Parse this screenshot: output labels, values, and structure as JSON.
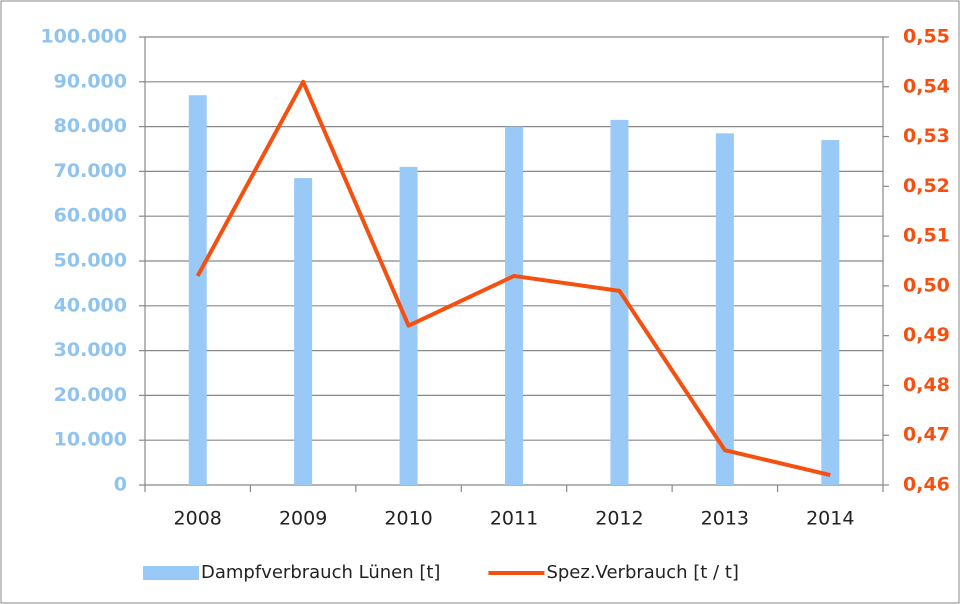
{
  "chart_data": {
    "type": "bar",
    "categories": [
      "2008",
      "2009",
      "2010",
      "2011",
      "2012",
      "2013",
      "2014"
    ],
    "series": [
      {
        "name": "Dampfverbrauch Lünen [t]",
        "type": "bar",
        "color": "#99c9f7",
        "values": [
          87000,
          68500,
          71000,
          80000,
          81500,
          78500,
          77000
        ]
      },
      {
        "name": "Spez.Verbrauch [t / t]",
        "type": "line",
        "axis": "y2",
        "color": "#f5500f",
        "values": [
          0.502,
          0.541,
          0.492,
          0.502,
          0.499,
          0.467,
          0.462
        ]
      }
    ],
    "ylim": [
      0,
      100000
    ],
    "yticks": [
      0,
      {
        "value": 10000,
        "label": "10.000"
      },
      {
        "value": 20000,
        "label": "20.000"
      },
      {
        "value": 30000,
        "label": "30.000"
      },
      {
        "value": 40000,
        "label": "40.000"
      },
      {
        "value": 50000,
        "label": "50.000"
      },
      {
        "value": 60000,
        "label": "60.000"
      },
      {
        "value": 70000,
        "label": "70.000"
      },
      {
        "value": 80000,
        "label": "80.000"
      },
      {
        "value": 90000,
        "label": "90.000"
      },
      {
        "value": 100000,
        "label": "100.000"
      }
    ],
    "y2lim": [
      0.46,
      0.55
    ],
    "y2ticks": [
      {
        "value": 0.46,
        "label": "0,46"
      },
      {
        "value": 0.47,
        "label": "0,47"
      },
      {
        "value": 0.48,
        "label": "0,48"
      },
      {
        "value": 0.49,
        "label": "0,49"
      },
      {
        "value": 0.5,
        "label": "0,50"
      },
      {
        "value": 0.51,
        "label": "0,51"
      },
      {
        "value": 0.52,
        "label": "0,52"
      },
      {
        "value": 0.53,
        "label": "0,53"
      },
      {
        "value": 0.54,
        "label": "0,54"
      },
      {
        "value": 0.55,
        "label": "0,55"
      }
    ],
    "ytick_color": "#8fc3f0",
    "y2tick_color": "#f5500f",
    "grid": true,
    "legend": "bottom"
  }
}
